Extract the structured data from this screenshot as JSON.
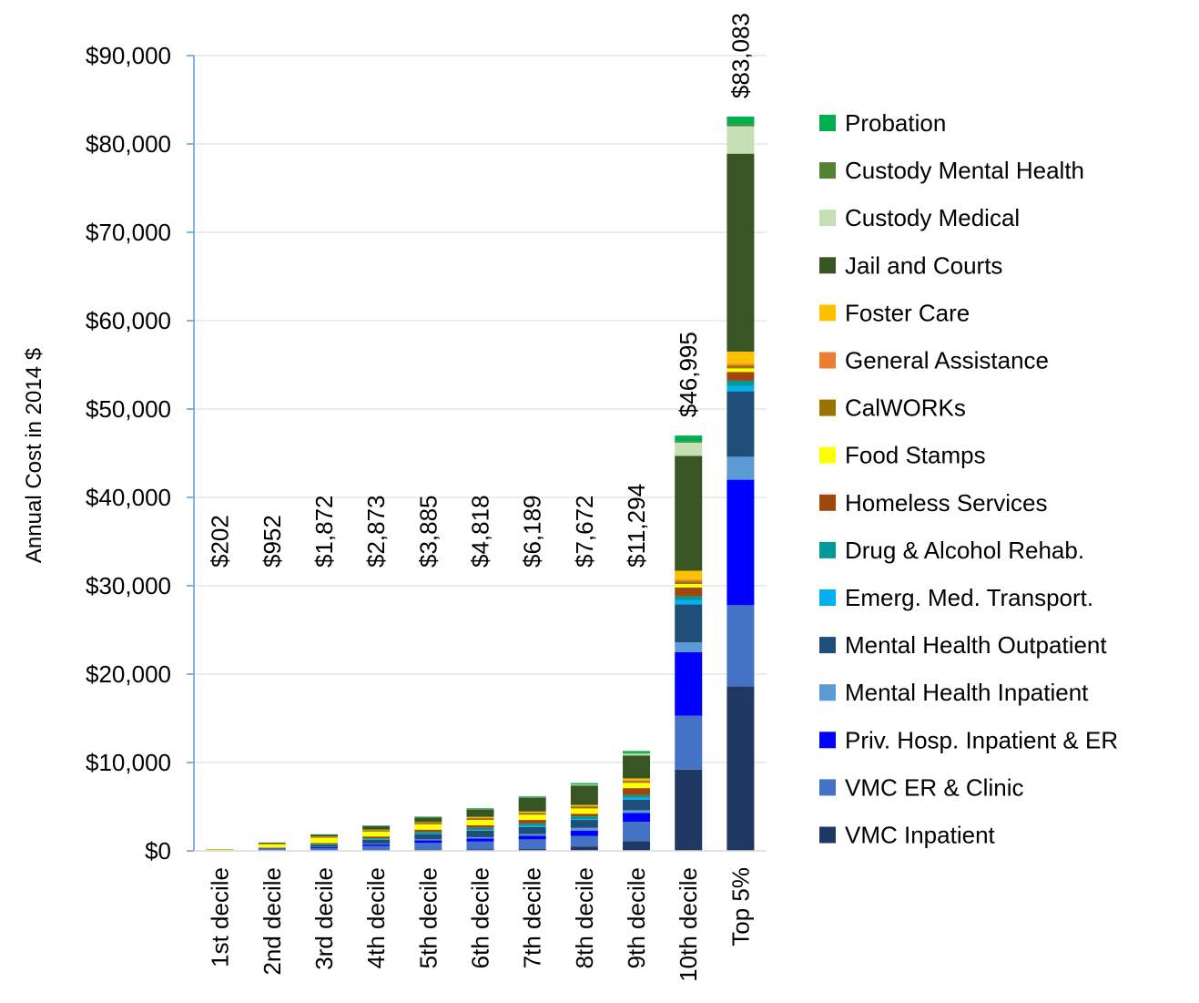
{
  "chart_data": {
    "type": "stacked_bar",
    "y_axis_label": "Annual Cost in 2014 $",
    "categories": [
      "1st decile",
      "2nd decile",
      "3rd decile",
      "4th decile",
      "5th decile",
      "6th decile",
      "7th decile",
      "8th decile",
      "9th decile",
      "10th decile",
      "Top 5%"
    ],
    "series": [
      {
        "name": "VMC Inpatient",
        "color": "#203864",
        "values": [
          0,
          10,
          20,
          50,
          100,
          150,
          200,
          500,
          1100,
          9200,
          18600
        ]
      },
      {
        "name": "VMC ER & Clinic",
        "color": "#4472c4",
        "values": [
          20,
          120,
          300,
          500,
          800,
          900,
          1100,
          1200,
          2200,
          6100,
          9200
        ]
      },
      {
        "name": "Priv. Hosp. Inpatient & ER",
        "color": "#0000ff",
        "values": [
          10,
          50,
          100,
          200,
          300,
          350,
          400,
          600,
          1000,
          7200,
          14200
        ]
      },
      {
        "name": "Mental Health Inpatient",
        "color": "#5b9bd5",
        "values": [
          0,
          10,
          20,
          50,
          100,
          150,
          200,
          300,
          300,
          1100,
          2600
        ]
      },
      {
        "name": "Mental Health Outpatient",
        "color": "#1f4e79",
        "values": [
          20,
          100,
          250,
          450,
          600,
          750,
          800,
          900,
          1200,
          4300,
          7400
        ]
      },
      {
        "name": "Emerg. Med. Transport.",
        "color": "#00b0f0",
        "values": [
          0,
          10,
          10,
          30,
          50,
          50,
          100,
          100,
          200,
          500,
          600
        ]
      },
      {
        "name": "Drug & Alcohol Rehab.",
        "color": "#009999",
        "values": [
          5,
          30,
          80,
          150,
          200,
          250,
          300,
          300,
          300,
          400,
          600
        ]
      },
      {
        "name": "Homeless Services",
        "color": "#9e480e",
        "values": [
          10,
          50,
          100,
          200,
          250,
          300,
          400,
          300,
          800,
          1000,
          1000
        ]
      },
      {
        "name": "Food Stamps",
        "color": "#ffff00",
        "values": [
          80,
          350,
          600,
          550,
          600,
          600,
          600,
          600,
          600,
          400,
          400
        ]
      },
      {
        "name": "CalWORKs",
        "color": "#997300",
        "values": [
          20,
          80,
          120,
          150,
          150,
          200,
          200,
          200,
          200,
          300,
          300
        ]
      },
      {
        "name": "General Assistance",
        "color": "#ed7d31",
        "values": [
          10,
          20,
          20,
          30,
          50,
          50,
          50,
          50,
          100,
          200,
          200
        ]
      },
      {
        "name": "Foster Care",
        "color": "#ffc000",
        "values": [
          0,
          10,
          20,
          40,
          50,
          100,
          100,
          150,
          200,
          1000,
          1400
        ]
      },
      {
        "name": "Jail and Courts",
        "color": "#375623",
        "values": [
          20,
          100,
          210,
          420,
          550,
          850,
          1600,
          2200,
          2600,
          13000,
          22400
        ]
      },
      {
        "name": "Custody Medical",
        "color": "#c5e0b4",
        "values": [
          2,
          4,
          5,
          10,
          20,
          30,
          50,
          100,
          200,
          1500,
          3100
        ]
      },
      {
        "name": "Custody Mental Health",
        "color": "#548235",
        "values": [
          1,
          2,
          2,
          5,
          10,
          10,
          20,
          20,
          50,
          100,
          200
        ]
      },
      {
        "name": "Probation",
        "color": "#00b050",
        "values": [
          2,
          6,
          15,
          38,
          55,
          80,
          70,
          150,
          250,
          700,
          900
        ]
      }
    ],
    "totals": [
      202,
      952,
      1872,
      2873,
      3885,
      4818,
      6189,
      7672,
      11294,
      46995,
      83083
    ],
    "total_labels": [
      "$202",
      "$952",
      "$1,872",
      "$2,873",
      "$3,885",
      "$4,818",
      "$6,189",
      "$7,672",
      "$11,294",
      "$46,995",
      "$83,083"
    ],
    "ylim": [
      0,
      90000
    ],
    "yticks": [
      {
        "value": 0,
        "label": "$0"
      },
      {
        "value": 10000,
        "label": "$10,000"
      },
      {
        "value": 20000,
        "label": "$20,000"
      },
      {
        "value": 30000,
        "label": "$30,000"
      },
      {
        "value": 40000,
        "label": "$40,000"
      },
      {
        "value": 50000,
        "label": "$50,000"
      },
      {
        "value": 60000,
        "label": "$60,000"
      },
      {
        "value": 70000,
        "label": "$70,000"
      },
      {
        "value": 80000,
        "label": "$80,000"
      },
      {
        "value": 90000,
        "label": "$90,000"
      }
    ],
    "grid": true,
    "legend": "right"
  }
}
